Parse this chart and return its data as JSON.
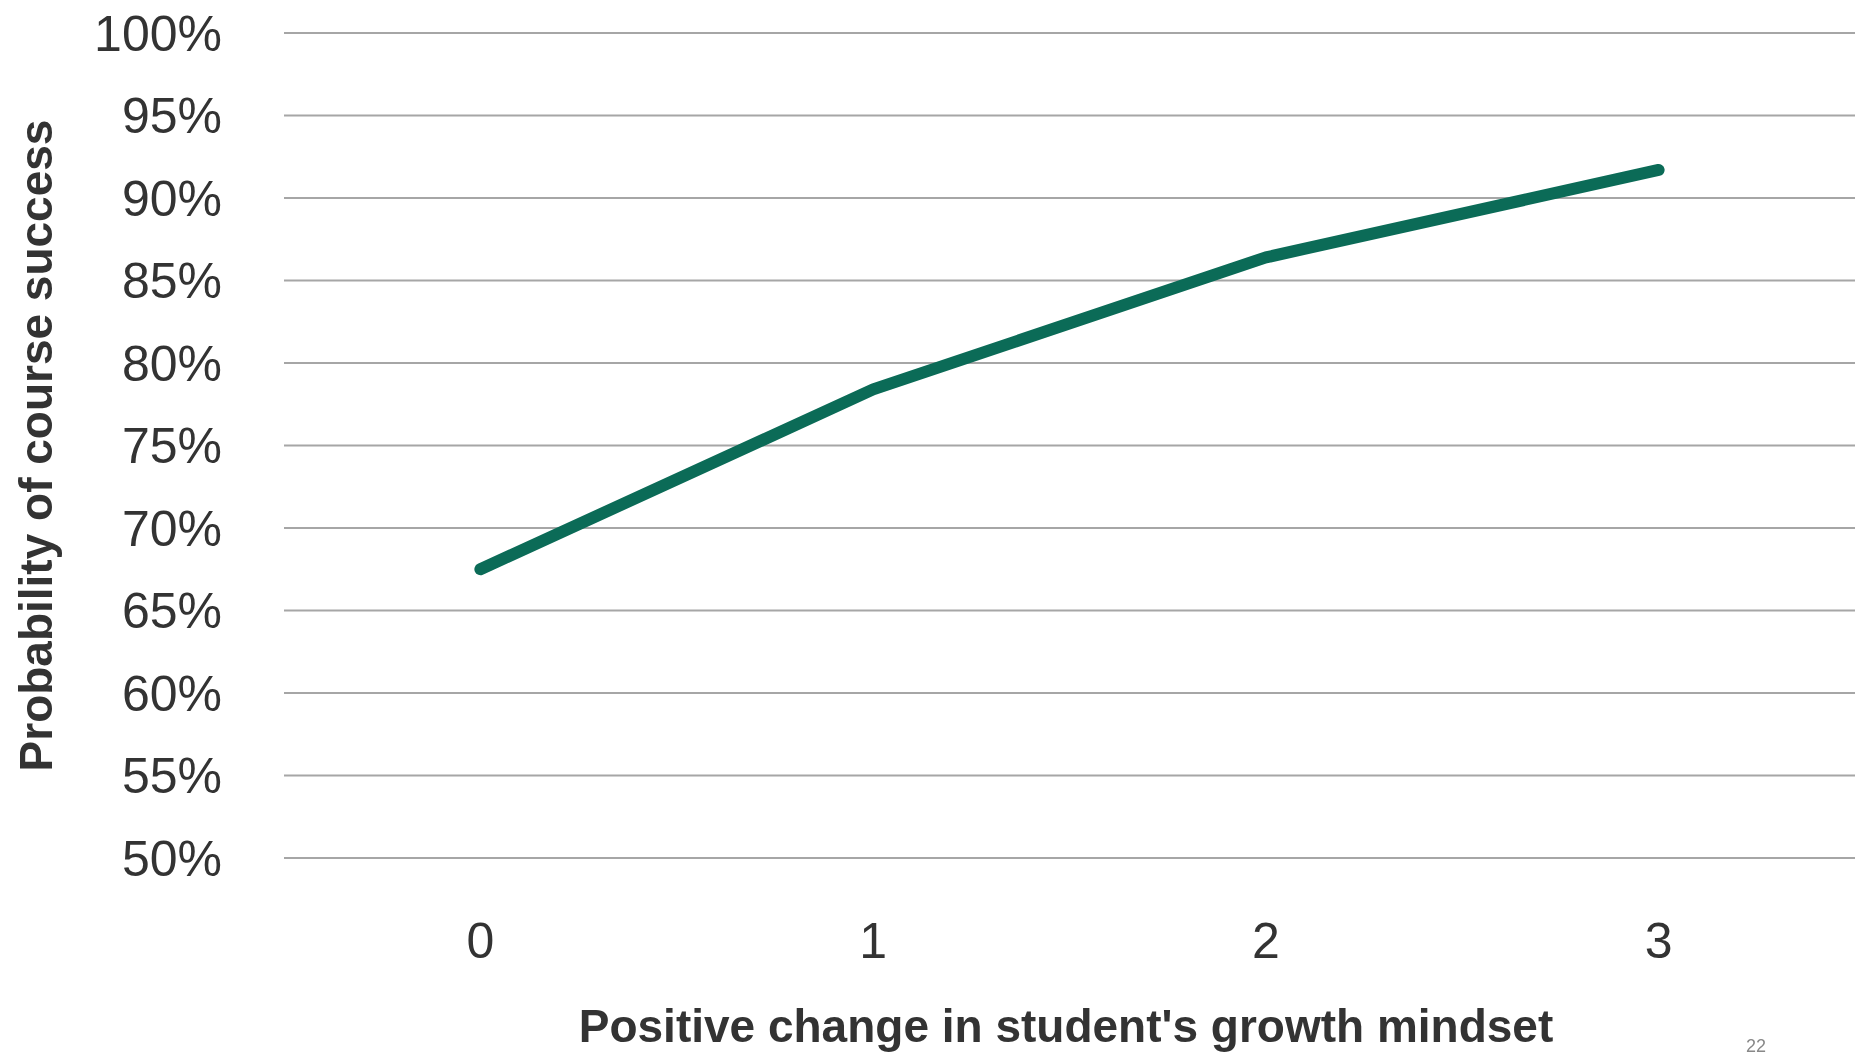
{
  "chart_data": {
    "type": "line",
    "xlabel": "Positive change in student's growth mindset",
    "ylabel": "Probability of course success",
    "categories": [
      "0",
      "1",
      "2",
      "3"
    ],
    "series": [
      {
        "color": "#0b6b57",
        "values": [
          67.5,
          78.4,
          86.4,
          91.7
        ]
      }
    ],
    "ylim": [
      50,
      100
    ],
    "yticks": [
      {
        "value": 50,
        "label": "50%"
      },
      {
        "value": 55,
        "label": "55%"
      },
      {
        "value": 60,
        "label": "60%"
      },
      {
        "value": 65,
        "label": "65%"
      },
      {
        "value": 70,
        "label": "70%"
      },
      {
        "value": 75,
        "label": "75%"
      },
      {
        "value": 80,
        "label": "80%"
      },
      {
        "value": 85,
        "label": "85%"
      },
      {
        "value": 90,
        "label": "90%"
      },
      {
        "value": 95,
        "label": "95%"
      },
      {
        "value": 100,
        "label": "100%"
      }
    ],
    "grid": "y",
    "marker": "none",
    "line_style": "solid",
    "annotations": [
      "22"
    ]
  }
}
